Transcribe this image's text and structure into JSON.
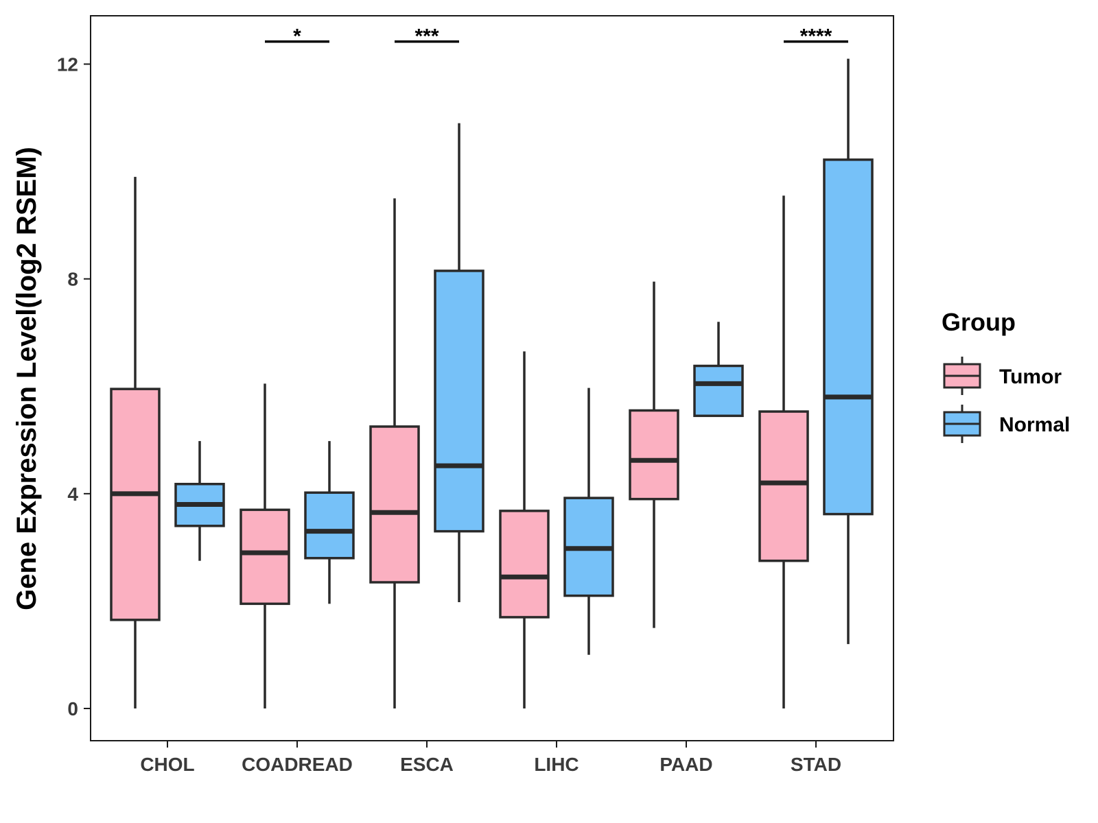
{
  "chart_data": {
    "type": "boxplot",
    "ylabel": "Gene Expression Level(log2 RSEM)",
    "xlabel": "",
    "ylim": [
      -0.6,
      12.9
    ],
    "yticks": [
      0,
      4,
      8,
      12
    ],
    "categories": [
      "CHOL",
      "COADREAD",
      "ESCA",
      "LIHC",
      "PAAD",
      "STAD"
    ],
    "legend": {
      "title": "Group",
      "position": "right",
      "entries": [
        {
          "name": "Tumor",
          "color": "#FBB0C1"
        },
        {
          "name": "Normal",
          "color": "#76C1F8"
        }
      ]
    },
    "series": [
      {
        "name": "Tumor",
        "color": "#FBB0C1",
        "boxes": [
          {
            "category": "CHOL",
            "min": 0.0,
            "q1": 1.65,
            "median": 4.0,
            "q3": 5.95,
            "max": 9.9
          },
          {
            "category": "COADREAD",
            "min": 0.0,
            "q1": 1.95,
            "median": 2.9,
            "q3": 3.7,
            "max": 6.05
          },
          {
            "category": "ESCA",
            "min": 0.0,
            "q1": 2.35,
            "median": 3.65,
            "q3": 5.25,
            "max": 9.5
          },
          {
            "category": "LIHC",
            "min": 0.0,
            "q1": 1.7,
            "median": 2.45,
            "q3": 3.68,
            "max": 6.65
          },
          {
            "category": "PAAD",
            "min": 1.5,
            "q1": 3.9,
            "median": 4.62,
            "q3": 5.55,
            "max": 7.95
          },
          {
            "category": "STAD",
            "min": 0.0,
            "q1": 2.75,
            "median": 4.2,
            "q3": 5.53,
            "max": 9.55
          }
        ]
      },
      {
        "name": "Normal",
        "color": "#76C1F8",
        "boxes": [
          {
            "category": "CHOL",
            "min": 2.75,
            "q1": 3.4,
            "median": 3.8,
            "q3": 4.18,
            "max": 4.98
          },
          {
            "category": "COADREAD",
            "min": 1.95,
            "q1": 2.8,
            "median": 3.3,
            "q3": 4.02,
            "max": 4.98
          },
          {
            "category": "ESCA",
            "min": 1.98,
            "q1": 3.3,
            "median": 4.52,
            "q3": 8.15,
            "max": 10.9
          },
          {
            "category": "LIHC",
            "min": 1.0,
            "q1": 2.1,
            "median": 2.98,
            "q3": 3.92,
            "max": 5.97
          },
          {
            "category": "PAAD",
            "min": 5.45,
            "q1": 5.45,
            "median": 6.05,
            "q3": 6.38,
            "max": 7.2
          },
          {
            "category": "STAD",
            "min": 1.2,
            "q1": 3.62,
            "median": 5.8,
            "q3": 10.22,
            "max": 12.1
          }
        ]
      }
    ],
    "significance": [
      {
        "category": "COADREAD",
        "label": "*",
        "y": 12.42
      },
      {
        "category": "ESCA",
        "label": "***",
        "y": 12.42
      },
      {
        "category": "STAD",
        "label": "****",
        "y": 12.42
      }
    ],
    "colors": {
      "outline": "#2a2a2a",
      "frame": "#1a1a1a",
      "tumor": "#FBB0C1",
      "normal": "#76C1F8"
    }
  }
}
